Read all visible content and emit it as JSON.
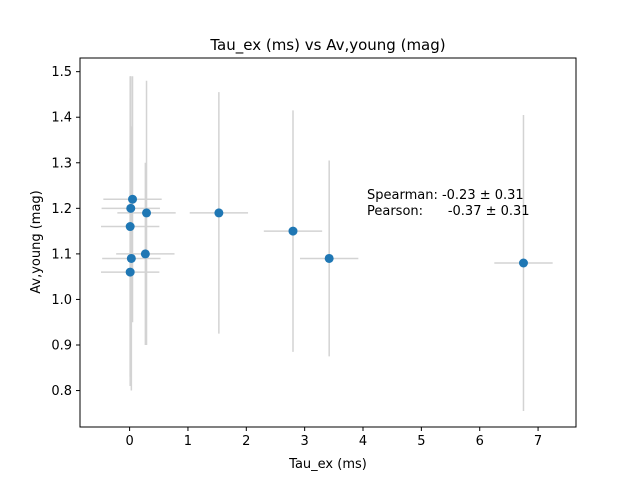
{
  "chart_data": {
    "type": "scatter",
    "title": "Tau_ex (ms) vs Av,young (mag)",
    "xlabel": "Tau_ex (ms)",
    "ylabel": "Av,young (mag)",
    "xlim": [
      -0.85,
      7.65
    ],
    "ylim": [
      0.72,
      1.53
    ],
    "xticks": [
      0,
      1,
      2,
      3,
      4,
      5,
      6,
      7
    ],
    "yticks": [
      0.8,
      0.9,
      1.0,
      1.1,
      1.2,
      1.3,
      1.4,
      1.5
    ],
    "xtick_labels": [
      "0",
      "1",
      "2",
      "3",
      "4",
      "5",
      "6",
      "7"
    ],
    "ytick_labels": [
      "0.8",
      "0.9",
      "1.0",
      "1.1",
      "1.2",
      "1.3",
      "1.4",
      "1.5"
    ],
    "grid": false,
    "marker_color": "#1f77b4",
    "errorbar_color": "#d3d3d3",
    "points": [
      {
        "x": 0.05,
        "y": 1.22,
        "xerr": 0.5,
        "yerr": 0.27
      },
      {
        "x": 0.02,
        "y": 1.2,
        "xerr": 0.5,
        "yerr": 0.29
      },
      {
        "x": 0.29,
        "y": 1.19,
        "xerr": 0.5,
        "yerr": 0.29
      },
      {
        "x": 1.53,
        "y": 1.19,
        "xerr": 0.5,
        "yerr": 0.265
      },
      {
        "x": 0.01,
        "y": 1.16,
        "xerr": 0.5,
        "yerr": 0.33
      },
      {
        "x": 2.8,
        "y": 1.15,
        "xerr": 0.5,
        "yerr": 0.265
      },
      {
        "x": 0.27,
        "y": 1.1,
        "xerr": 0.5,
        "yerr": 0.2
      },
      {
        "x": 0.03,
        "y": 1.09,
        "xerr": 0.5,
        "yerr": 0.29
      },
      {
        "x": 3.42,
        "y": 1.09,
        "xerr": 0.5,
        "yerr": 0.215
      },
      {
        "x": 0.01,
        "y": 1.06,
        "xerr": 0.5,
        "yerr": 0.25
      },
      {
        "x": 6.75,
        "y": 1.08,
        "xerr": 0.5,
        "yerr": 0.325
      }
    ],
    "annotation": {
      "line1": "Spearman: -0.23 ± 0.31",
      "line2": "Pearson:      -0.37 ± 0.31"
    }
  }
}
